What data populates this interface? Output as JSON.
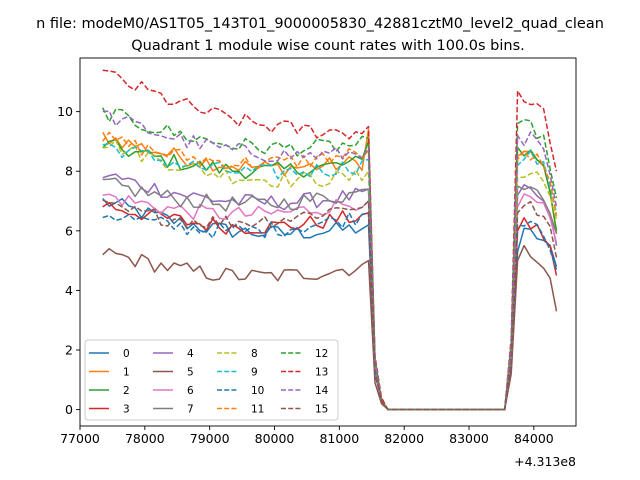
{
  "chart_data": {
    "type": "line",
    "suptitle": "n file: modeM0/AS1T05_143T01_9000005830_42881cztM0_level2_quad_clean",
    "title": "Quadrant 1 module wise count rates with 100.0s bins.",
    "xlabel": "",
    "ylabel": "",
    "x_offset_label": "+4.313e8",
    "xlim": [
      77000,
      84650
    ],
    "ylim": [
      -0.55,
      11.8
    ],
    "xticks": [
      77000,
      78000,
      79000,
      80000,
      81000,
      82000,
      83000,
      84000
    ],
    "xtick_labels": [
      "77000",
      "78000",
      "79000",
      "80000",
      "81000",
      "82000",
      "83000",
      "84000"
    ],
    "yticks": [
      0,
      2,
      4,
      6,
      8,
      10
    ],
    "ytick_labels": [
      "0",
      "2",
      "4",
      "6",
      "8",
      "10"
    ],
    "grid": false,
    "legend_position": "lower-left",
    "legend_columns": 4,
    "x_start": 77350,
    "bin_width": 100,
    "segments": {
      "gap_drop_bins": [
        41,
        42,
        43
      ],
      "gap_start_bin": 44,
      "gap_end_bin": 62,
      "rise_bins": [
        63,
        64
      ],
      "last_bin": 70
    },
    "series": [
      {
        "name": "0",
        "color": "#1f77b4",
        "style": "solid",
        "seg1_start": 7.0,
        "seg1_end": 6.1,
        "drop": [
          6.2,
          1.3,
          0.3
        ],
        "rise": [
          1.5,
          5.3
        ],
        "seg2_start": 5.9,
        "seg2_end": 4.8
      },
      {
        "name": "1",
        "color": "#ff7f0e",
        "style": "solid",
        "seg1_start": 9.2,
        "seg1_end": 8.3,
        "drop": [
          9.4,
          1.6,
          0.3
        ],
        "rise": [
          2.0,
          8.5
        ],
        "seg2_start": 8.6,
        "seg2_end": 5.9
      },
      {
        "name": "2",
        "color": "#2ca02c",
        "style": "solid",
        "seg1_start": 8.9,
        "seg1_end": 8.3,
        "drop": [
          9.0,
          1.5,
          0.3
        ],
        "rise": [
          2.0,
          8.8
        ],
        "seg2_start": 8.7,
        "seg2_end": 6.0
      },
      {
        "name": "3",
        "color": "#d62728",
        "style": "solid",
        "seg1_start": 6.9,
        "seg1_end": 6.5,
        "drop": [
          6.6,
          1.2,
          0.3
        ],
        "rise": [
          1.6,
          6.0
        ],
        "seg2_start": 6.2,
        "seg2_end": 4.5
      },
      {
        "name": "4",
        "color": "#9467bd",
        "style": "solid",
        "seg1_start": 7.9,
        "seg1_end": 7.2,
        "drop": [
          7.4,
          1.3,
          0.3
        ],
        "rise": [
          1.8,
          7.2
        ],
        "seg2_start": 7.3,
        "seg2_end": 5.5
      },
      {
        "name": "5",
        "color": "#8c564b",
        "style": "solid",
        "seg1_start": 5.3,
        "seg1_end": 4.8,
        "drop": [
          5.0,
          0.9,
          0.2
        ],
        "rise": [
          1.2,
          5.0
        ],
        "seg2_start": 5.3,
        "seg2_end": 3.3
      },
      {
        "name": "6",
        "color": "#e377c2",
        "style": "solid",
        "seg1_start": 7.2,
        "seg1_end": 7.0,
        "drop": [
          7.0,
          1.3,
          0.3
        ],
        "rise": [
          1.7,
          6.8
        ],
        "seg2_start": 7.0,
        "seg2_end": 5.6
      },
      {
        "name": "7",
        "color": "#7f7f7f",
        "style": "solid",
        "seg1_start": 7.6,
        "seg1_end": 7.3,
        "drop": [
          7.4,
          1.4,
          0.3
        ],
        "rise": [
          1.9,
          7.5
        ],
        "seg2_start": 7.6,
        "seg2_end": 5.9
      },
      {
        "name": "8",
        "color": "#bcbd22",
        "style": "dashed",
        "seg1_start": 9.0,
        "seg1_end": 7.8,
        "drop": [
          8.0,
          1.5,
          0.3
        ],
        "rise": [
          2.0,
          7.8
        ],
        "seg2_start": 8.0,
        "seg2_end": 6.4
      },
      {
        "name": "9",
        "color": "#17becf",
        "style": "dashed",
        "seg1_start": 8.9,
        "seg1_end": 8.2,
        "drop": [
          8.4,
          1.5,
          0.3
        ],
        "rise": [
          2.0,
          8.2
        ],
        "seg2_start": 8.5,
        "seg2_end": 6.6
      },
      {
        "name": "10",
        "color": "#1f77b4",
        "style": "dashed",
        "seg1_start": 6.6,
        "seg1_end": 6.5,
        "drop": [
          6.6,
          1.2,
          0.3
        ],
        "rise": [
          1.6,
          6.2
        ],
        "seg2_start": 6.4,
        "seg2_end": 4.7
      },
      {
        "name": "11",
        "color": "#ff7f0e",
        "style": "dashed",
        "seg1_start": 9.1,
        "seg1_end": 8.6,
        "drop": [
          8.7,
          1.6,
          0.3
        ],
        "rise": [
          2.1,
          8.4
        ],
        "seg2_start": 8.5,
        "seg2_end": 6.5
      },
      {
        "name": "12",
        "color": "#2ca02c",
        "style": "dashed",
        "seg1_start": 10.0,
        "seg1_end": 8.9,
        "drop": [
          9.1,
          1.7,
          0.3
        ],
        "rise": [
          2.2,
          9.6
        ],
        "seg2_start": 9.5,
        "seg2_end": 7.1
      },
      {
        "name": "13",
        "color": "#d62728",
        "style": "dashed",
        "seg1_start": 11.3,
        "seg1_end": 9.3,
        "drop": [
          9.5,
          1.8,
          0.4
        ],
        "rise": [
          2.4,
          10.7
        ],
        "seg2_start": 10.4,
        "seg2_end": 8.0
      },
      {
        "name": "14",
        "color": "#9467bd",
        "style": "dashed",
        "seg1_start": 9.9,
        "seg1_end": 8.6,
        "drop": [
          8.8,
          1.7,
          0.3
        ],
        "rise": [
          2.2,
          9.2
        ],
        "seg2_start": 9.1,
        "seg2_end": 6.8
      },
      {
        "name": "15",
        "color": "#8c564b",
        "style": "dashed",
        "seg1_start": 6.8,
        "seg1_end": 6.9,
        "drop": [
          7.0,
          1.3,
          0.3
        ],
        "rise": [
          1.6,
          6.6
        ],
        "seg2_start": 6.8,
        "seg2_end": 5.1
      }
    ]
  }
}
